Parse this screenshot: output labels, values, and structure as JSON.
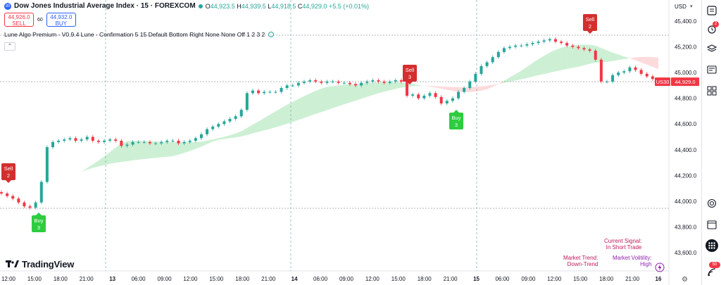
{
  "header": {
    "badge": "30",
    "title": "Dow Jones Industrial Average Index · 15 · FOREXCOM",
    "open_label": "O",
    "open": "44,923.5",
    "high_label": "H",
    "high": "44,939.5",
    "low_label": "L",
    "low": "44,918.5",
    "close_label": "C",
    "close": "44,929.0",
    "change": "+5.5 (+0.01%)"
  },
  "trade_panel": {
    "sell_price": "44,926.0",
    "sell_label": "SELL",
    "spread": "60",
    "buy_price": "44,932.0",
    "buy_label": "BUY"
  },
  "indicator": {
    "label": "Lune Algo Premium - V0.9.4 Lune - Confirmation 5 15 Default Bottom Right None None Off 1 2 3 2"
  },
  "price_axis": {
    "currency": "USD",
    "ticks": [
      "45,400.0",
      "45,200.0",
      "45,000.0",
      "44,800.0",
      "44,600.0",
      "44,400.0",
      "44,200.0",
      "44,000.0",
      "43,800.0",
      "43,600.0"
    ],
    "symbol_tag": "US30",
    "last_price": "44,929.0"
  },
  "time_axis": {
    "labels": [
      "12:00",
      "15:00",
      "18:00",
      "21:00",
      "13",
      "06:00",
      "09:00",
      "12:00",
      "15:00",
      "18:00",
      "21:00",
      "14",
      "06:00",
      "09:00",
      "12:00",
      "15:00",
      "18:00",
      "21:00",
      "15",
      "06:00",
      "09:00",
      "12:00",
      "15:00",
      "18:00",
      "21:00",
      "16"
    ]
  },
  "signals": [
    {
      "type": "Sell",
      "num": "2"
    },
    {
      "type": "Buy",
      "num": "3"
    },
    {
      "type": "Sell",
      "num": "3"
    },
    {
      "type": "Buy",
      "num": "3"
    },
    {
      "type": "Sell",
      "num": "2"
    }
  ],
  "dashboard": {
    "current_signal_label": "Current Signal:",
    "current_signal_value": "In Short Trade",
    "trend_label": "Market Trend:",
    "trend_value": "Down-Trend",
    "volatility_label": "Market Volitility:",
    "volatility_value": "High"
  },
  "logo": {
    "text": "TradingView"
  },
  "sidebar": {
    "alert_badge": "2",
    "notif_badge": "50"
  },
  "colors": {
    "up": "#26a69a",
    "down": "#f23645",
    "accent": "#2962ff",
    "signal_sell": "#d32f2f",
    "signal_buy": "#2ecc40"
  },
  "chart_data": {
    "type": "line",
    "title": "",
    "xlabel": "",
    "ylabel": "",
    "ylim": [
      43500,
      45500
    ],
    "series": [
      {
        "values": [
          44060,
          44040,
          44020,
          43990,
          43960,
          43950,
          43990,
          44150,
          44420,
          44460,
          44470,
          44480,
          44490,
          44470,
          44480,
          44500,
          44470,
          44460,
          44470,
          44480,
          44470,
          44430,
          44440,
          44460,
          44460,
          44460,
          44450,
          44450,
          44460,
          44470,
          44470,
          44450,
          44460,
          44470,
          44490,
          44520,
          44560,
          44580,
          44600,
          44620,
          44640,
          44660,
          44710,
          44840,
          44860,
          44840,
          44850,
          44850,
          44850,
          44880,
          44900,
          44900,
          44920,
          44930,
          44940,
          44930,
          44920,
          44930,
          44930,
          44920,
          44920,
          44910,
          44900,
          44920,
          44930,
          44940,
          44930,
          44920,
          44930,
          44940,
          44930,
          44820,
          44830,
          44800,
          44820,
          44840,
          44810,
          44760,
          44780,
          44800,
          44850,
          44880,
          44930,
          44990,
          45050,
          45080,
          45120,
          45160,
          45190,
          45200,
          45210,
          45210,
          45220,
          45230,
          45240,
          45250,
          45260,
          45240,
          45230,
          45210,
          45200,
          45190,
          45180,
          45170,
          45100,
          44930,
          44930,
          44980,
          45000,
          45010,
          45040,
          45020,
          44990,
          44970,
          44950,
          44930
        ]
      }
    ]
  }
}
